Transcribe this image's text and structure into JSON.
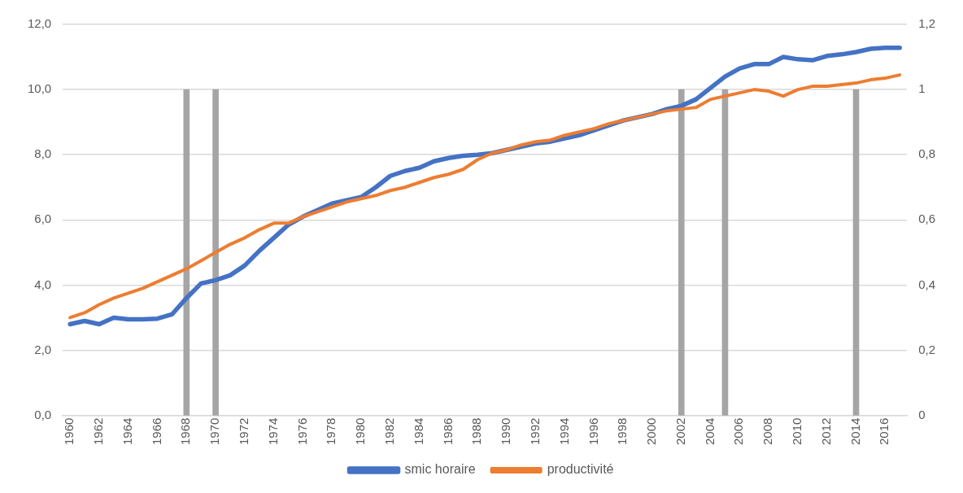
{
  "chart_data": {
    "type": "line",
    "categories": [
      "1960",
      null,
      "1962",
      null,
      "1964",
      null,
      "1966",
      null,
      "1968",
      null,
      "1970",
      null,
      "1972",
      null,
      "1974",
      null,
      "1976",
      null,
      "1978",
      null,
      "1980",
      null,
      "1982",
      null,
      "1984",
      null,
      "1986",
      null,
      "1988",
      null,
      "1990",
      null,
      "1992",
      null,
      "1994",
      null,
      "1996",
      null,
      "1998",
      null,
      "2000",
      null,
      "2002",
      null,
      "2004",
      null,
      "2006",
      null,
      "2008",
      null,
      "2010",
      null,
      "2012",
      null,
      "2014",
      null,
      "2016",
      null
    ],
    "series": [
      {
        "name": "smic horaire",
        "color": "#4472c4",
        "values": [
          2.8,
          2.9,
          2.8,
          3.0,
          2.95,
          2.95,
          2.97,
          3.1,
          3.6,
          4.05,
          4.15,
          4.3,
          4.6,
          5.05,
          5.45,
          5.85,
          6.1,
          6.3,
          6.5,
          6.6,
          6.7,
          7.0,
          7.35,
          7.5,
          7.6,
          7.8,
          7.9,
          7.97,
          8.0,
          8.05,
          8.15,
          8.25,
          8.35,
          8.4,
          8.5,
          8.6,
          8.75,
          8.9,
          9.05,
          9.15,
          9.25,
          9.4,
          9.5,
          9.7,
          10.05,
          10.4,
          10.65,
          10.78,
          10.78,
          11.0,
          10.93,
          10.9,
          11.03,
          11.08,
          11.15,
          11.25,
          11.28,
          11.28
        ]
      },
      {
        "name": "productivité",
        "axis": "y2",
        "color": "#ed7d31",
        "values": [
          0.3,
          0.315,
          0.34,
          0.36,
          0.375,
          0.39,
          0.41,
          0.43,
          0.45,
          0.475,
          0.5,
          0.525,
          0.545,
          0.57,
          0.59,
          0.59,
          0.61,
          0.625,
          0.64,
          0.655,
          0.665,
          0.675,
          0.69,
          0.7,
          0.715,
          0.73,
          0.74,
          0.755,
          0.785,
          0.805,
          0.815,
          0.83,
          0.84,
          0.845,
          0.86,
          0.87,
          0.88,
          0.895,
          0.905,
          0.915,
          0.925,
          0.935,
          0.94,
          0.945,
          0.97,
          0.98,
          0.99,
          1.0,
          0.995,
          0.98,
          1.0,
          1.01,
          1.01,
          1.015,
          1.02,
          1.03,
          1.035,
          1.045
        ]
      },
      {
        "type": "bar",
        "axis": "y2",
        "color": "#a5a5a5",
        "values": [
          null,
          null,
          null,
          null,
          null,
          null,
          null,
          null,
          1,
          null,
          1,
          null,
          null,
          null,
          null,
          null,
          null,
          null,
          null,
          null,
          null,
          null,
          null,
          null,
          null,
          null,
          null,
          null,
          null,
          null,
          null,
          null,
          null,
          null,
          null,
          null,
          null,
          null,
          null,
          null,
          null,
          null,
          1,
          null,
          null,
          1,
          null,
          null,
          null,
          null,
          null,
          null,
          null,
          null,
          1,
          null,
          null,
          null
        ]
      }
    ],
    "ylim": [
      0,
      12
    ],
    "yticks": [
      {
        "value": 0,
        "label": "0,0"
      },
      {
        "value": 2,
        "label": "2,0"
      },
      {
        "value": 4,
        "label": "4,0"
      },
      {
        "value": 6,
        "label": "6,0"
      },
      {
        "value": 8,
        "label": "8,0"
      },
      {
        "value": 10,
        "label": "10,0"
      },
      {
        "value": 12,
        "label": "12,0"
      }
    ],
    "y2lim": [
      0,
      1.2
    ],
    "y2ticks": [
      0,
      {
        "value": 0.2,
        "label": "0,2"
      },
      {
        "value": 0.4,
        "label": "0,4"
      },
      {
        "value": 0.6,
        "label": "0,6"
      },
      {
        "value": 0.8,
        "label": "0,8"
      },
      1,
      {
        "value": 1.2,
        "label": "1,2"
      }
    ],
    "grid": "y",
    "legend": "bottom",
    "marker": "none",
    "line_style": "solid"
  }
}
